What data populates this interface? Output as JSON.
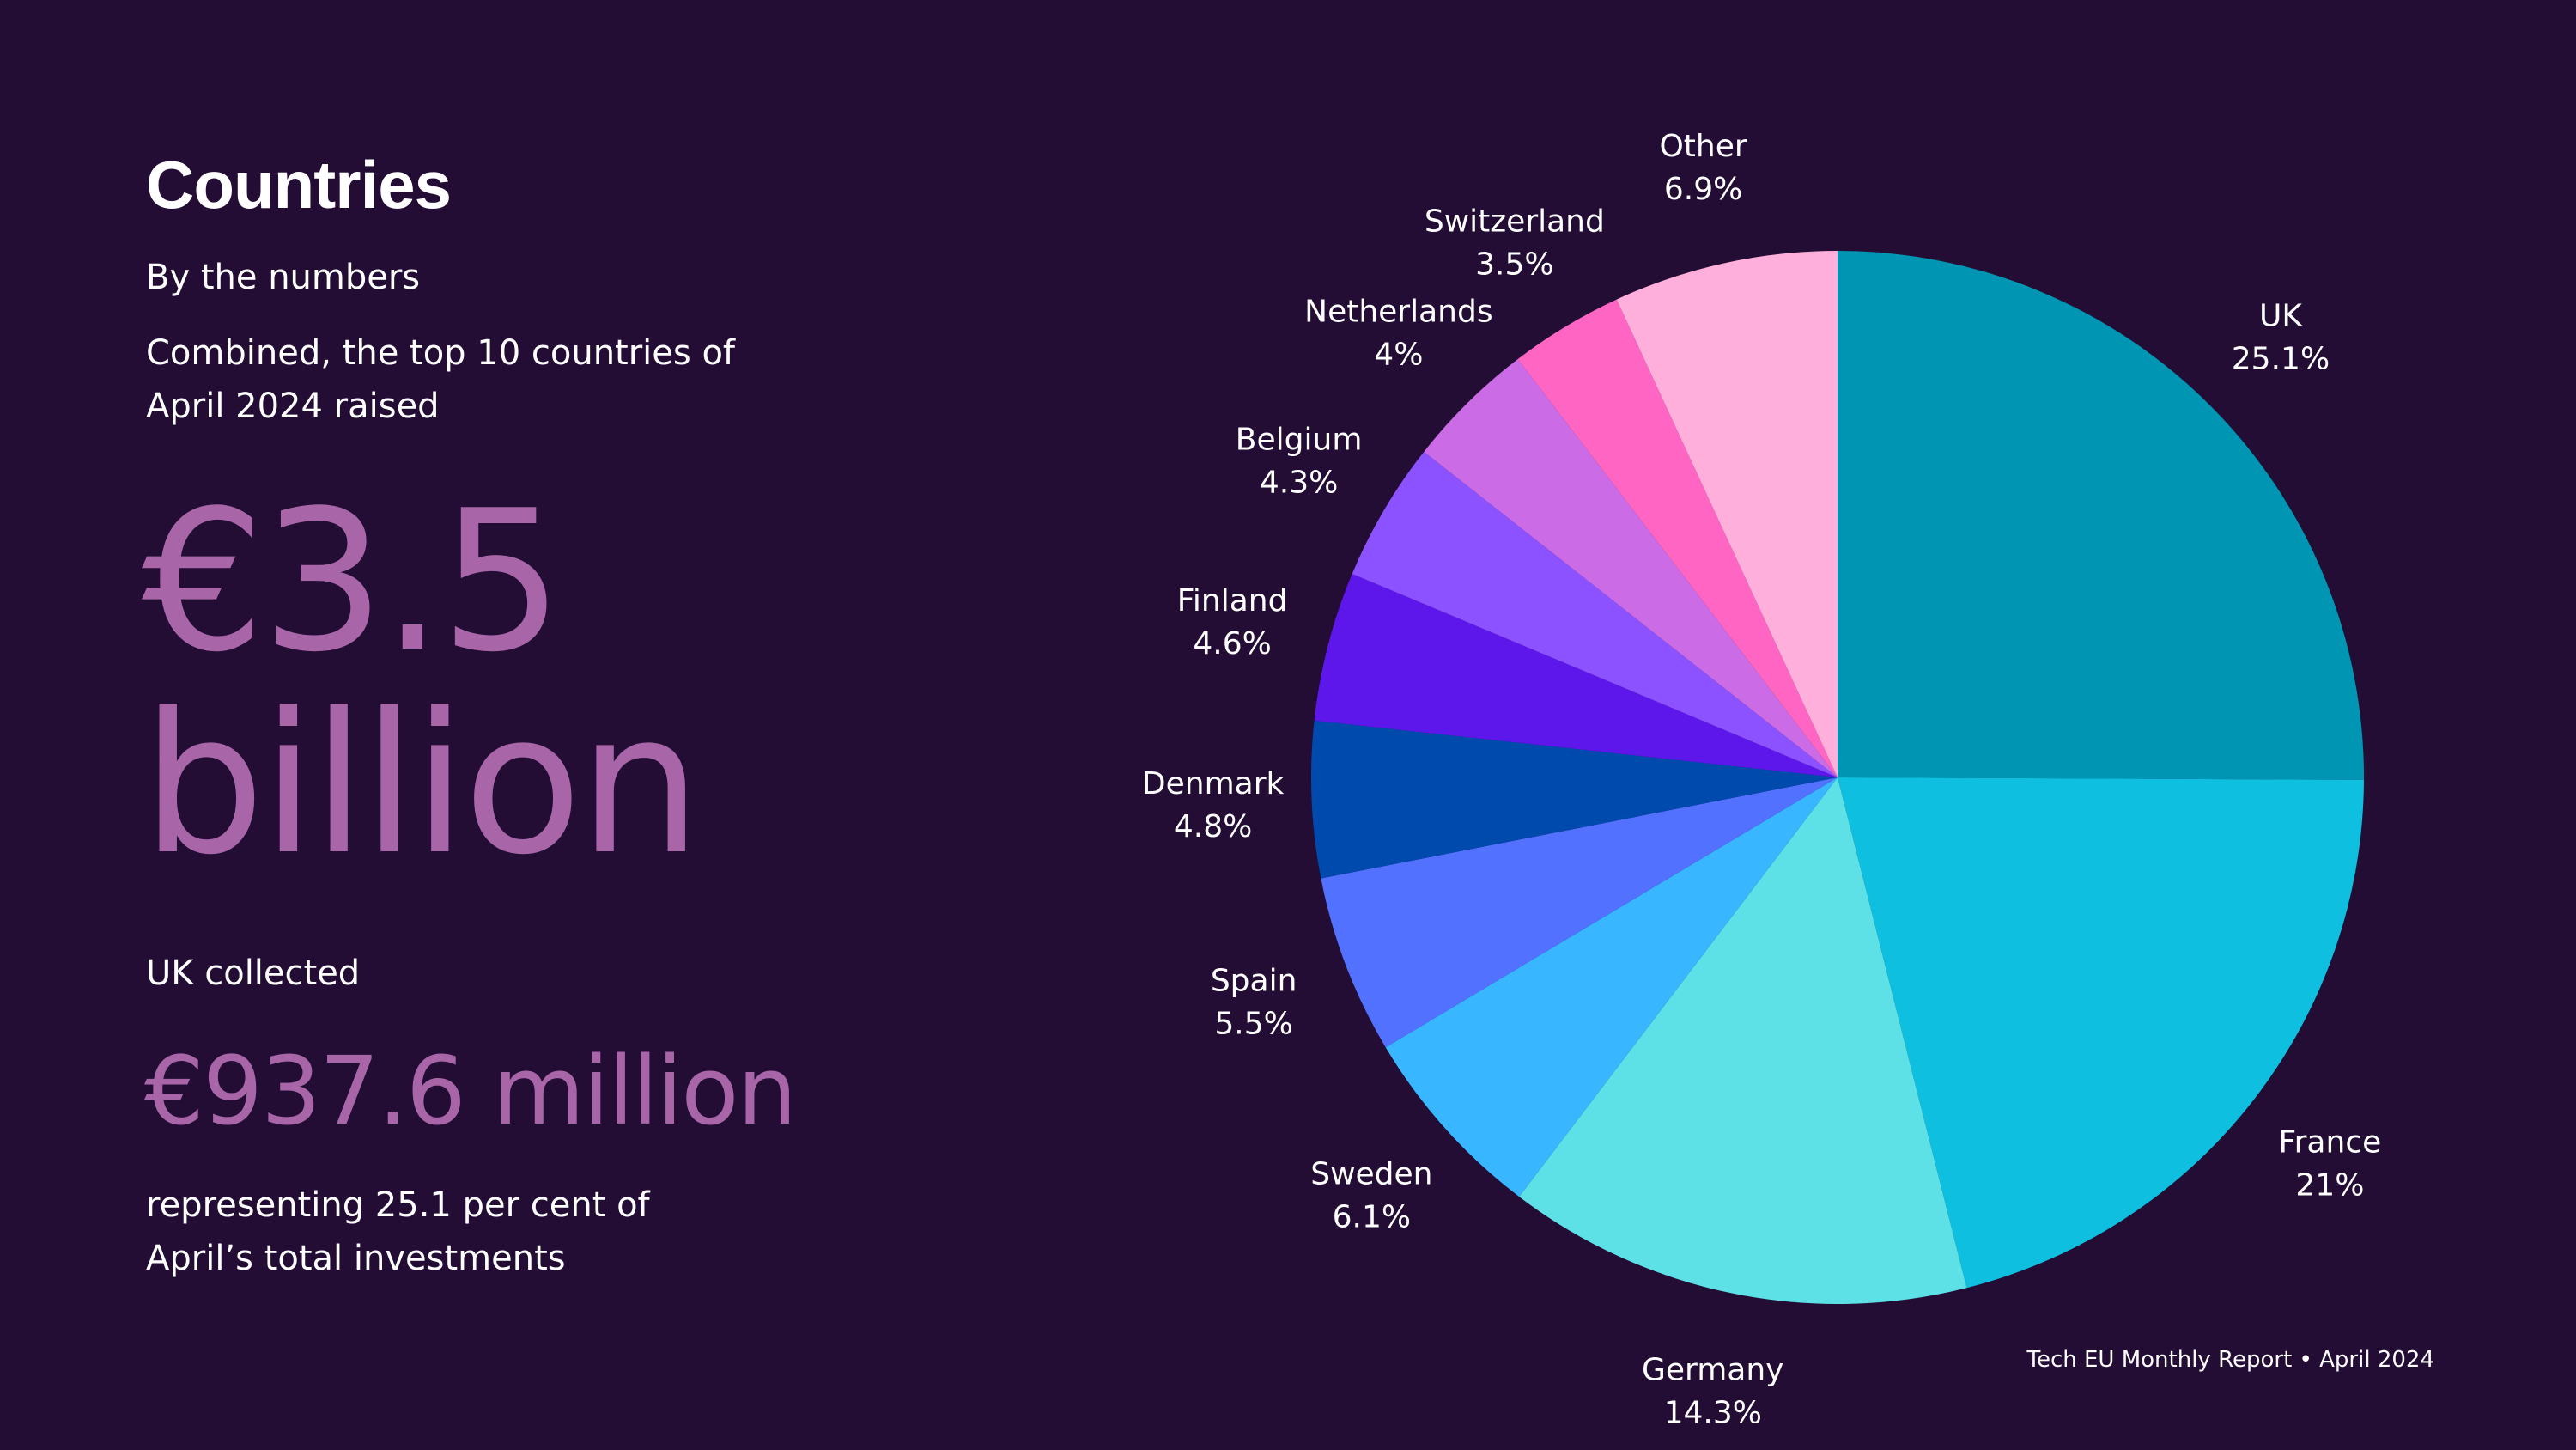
{
  "heading": {
    "title": "Countries",
    "subtitle": "By the numbers",
    "intro": "Combined, the top 10 countries of April 2024 raised",
    "total_amount": "€3.5 billion"
  },
  "uk_highlight": {
    "label": "UK collected",
    "amount": "€937.6 million",
    "note": "representing 25.1 per cent of April’s total investments"
  },
  "footer": "Tech EU Monthly Report • April 2024",
  "colors": {
    "background": "#230d35",
    "accent": "#a866a8"
  },
  "chart_data": {
    "type": "pie",
    "title": "",
    "slices": [
      {
        "name": "UK",
        "value": 25.1,
        "label": "25.1%",
        "color": "#0096b3"
      },
      {
        "name": "France",
        "value": 21,
        "label": "21%",
        "color": "#0ebfe0"
      },
      {
        "name": "Germany",
        "value": 14.3,
        "label": "14.3%",
        "color": "#5de0e6"
      },
      {
        "name": "Sweden",
        "value": 6.1,
        "label": "6.1%",
        "color": "#38b6ff"
      },
      {
        "name": "Spain",
        "value": 5.5,
        "label": "5.5%",
        "color": "#5271ff"
      },
      {
        "name": "Denmark",
        "value": 4.8,
        "label": "4.8%",
        "color": "#004aad"
      },
      {
        "name": "Finland",
        "value": 4.6,
        "label": "4.6%",
        "color": "#5e17eb"
      },
      {
        "name": "Belgium",
        "value": 4.3,
        "label": "4.3%",
        "color": "#8c52ff"
      },
      {
        "name": "Netherlands",
        "value": 4,
        "label": "4%",
        "color": "#cb6ce6"
      },
      {
        "name": "Switzerland",
        "value": 3.5,
        "label": "3.5%",
        "color": "#ff66c4"
      },
      {
        "name": "Other",
        "value": 6.9,
        "label": "6.9%",
        "color": "#ffafdc"
      }
    ]
  }
}
